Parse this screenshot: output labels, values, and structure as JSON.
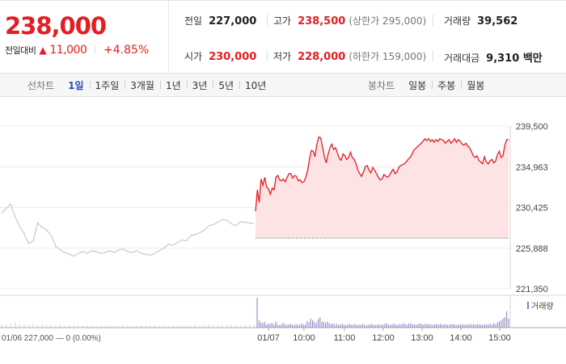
{
  "price": {
    "current": "238,000",
    "change_label": "전일대비",
    "change_value": "11,000",
    "change_rate": "+4.85%"
  },
  "stats": {
    "prev_close_label": "전일",
    "prev_close": "227,000",
    "high_label": "고가",
    "high": "238,500",
    "upper_limit": "(상한가 295,000)",
    "volume_label": "거래량",
    "volume": "39,562",
    "open_label": "시가",
    "open": "230,000",
    "low_label": "저가",
    "low": "228,000",
    "lower_limit": "(하한가 159,000)",
    "amount_label": "거래대금",
    "amount": "9,310 백만"
  },
  "line_tabs": {
    "head": "선차트",
    "items": [
      "1일",
      "1주일",
      "3개월",
      "1년",
      "3년",
      "5년",
      "10년"
    ],
    "active": "1일"
  },
  "candle_tabs": {
    "head": "봉차트",
    "items": [
      "일봉",
      "주봉",
      "월봉"
    ]
  },
  "colors": {
    "up": "#e41e23",
    "up_fill": "#fde3e4",
    "prev_line": "#c9c9c9",
    "volume": "#8a7bbf",
    "active_tab": "#2a4fb7"
  },
  "chart_data": {
    "type": "line",
    "y_ticks": [
      "239,500",
      "234,963",
      "230,425",
      "225,888",
      "221,350"
    ],
    "ylim": [
      221350,
      239500
    ],
    "prev_close": 227000,
    "x_labels": [
      "01/07",
      "10:00",
      "11:00",
      "12:00",
      "13:00",
      "14:00",
      "15:00"
    ],
    "prev_day_caption": "01/06  227,000 — 0 (0.00%)",
    "volume_legend": "거래량",
    "prev_day_prices": [
      229800,
      230300,
      230800,
      229400,
      228300,
      227500,
      226400,
      226700,
      228700,
      228200,
      227900,
      227300,
      226100,
      225700,
      225400,
      225200,
      225000,
      225300,
      225500,
      225300,
      225600,
      225500,
      225300,
      225400,
      225600,
      225400,
      225700,
      225800,
      225500,
      225400,
      225600,
      225300,
      225200,
      225100,
      225300,
      225600,
      225900,
      226300,
      226200,
      226500,
      226800,
      226700,
      227300,
      227400,
      227600,
      227900,
      228400,
      228500,
      228800,
      229100,
      229000,
      228600,
      228400,
      228800,
      228800,
      228700,
      228600
    ],
    "today_prices": [
      230000,
      232400,
      231000,
      233600,
      232900,
      233800,
      232700,
      232500,
      231900,
      232600,
      232400,
      233800,
      234000,
      233500,
      233400,
      233600,
      233300,
      233800,
      234200,
      234200,
      233700,
      234000,
      233900,
      233400,
      233500,
      233200,
      233300,
      233800,
      234500,
      235800,
      236800,
      236700,
      236100,
      237500,
      238300,
      238200,
      237200,
      236100,
      235400,
      236400,
      237100,
      237500,
      236900,
      237100,
      236500,
      235900,
      235700,
      236400,
      236200,
      235800,
      236000,
      236600,
      236000,
      235800,
      235300,
      234600,
      234200,
      233900,
      234400,
      235000,
      235100,
      234600,
      234300,
      234900,
      234600,
      234200,
      233800,
      233500,
      233600,
      234100,
      233900,
      233800,
      234000,
      234400,
      234700,
      234200,
      234400,
      234900,
      235100,
      235200,
      235300,
      235500,
      235800,
      236000,
      236300,
      236800,
      237000,
      237200,
      237400,
      237600,
      237800,
      238100,
      237900,
      238100,
      237800,
      238000,
      237700,
      238000,
      237800,
      238100,
      238000,
      237900,
      237600,
      237800,
      238000,
      237600,
      237800,
      238100,
      237700,
      238000,
      237800,
      237500,
      237400,
      237600,
      237300,
      237100,
      236700,
      236200,
      236000,
      236200,
      235700,
      235500,
      235300,
      236100,
      235500,
      235300,
      235600,
      235800,
      235400,
      235600,
      236300,
      236700,
      236000,
      236200,
      237400,
      238000,
      238000
    ],
    "today_volume": [
      1.0,
      0.25,
      0.18,
      0.15,
      0.2,
      0.1,
      0.14,
      0.12,
      0.16,
      0.1,
      0.2,
      0.12,
      0.08,
      0.1,
      0.15,
      0.12,
      0.09,
      0.1,
      0.13,
      0.1,
      0.08,
      0.12,
      0.1,
      0.09,
      0.14,
      0.11,
      0.1,
      0.22,
      0.18,
      0.3,
      0.25,
      0.2,
      0.15,
      0.28,
      0.35,
      0.2,
      0.18,
      0.16,
      0.2,
      0.15,
      0.12,
      0.14,
      0.1,
      0.12,
      0.09,
      0.11,
      0.13,
      0.1,
      0.08,
      0.1,
      0.12,
      0.09,
      0.1,
      0.11,
      0.08,
      0.1,
      0.09,
      0.12,
      0.1,
      0.08,
      0.09,
      0.1,
      0.12,
      0.09,
      0.08,
      0.1,
      0.11,
      0.09,
      0.1,
      0.12,
      0.15,
      0.1,
      0.09,
      0.11,
      0.13,
      0.1,
      0.09,
      0.12,
      0.1,
      0.14,
      0.12,
      0.1,
      0.13,
      0.15,
      0.12,
      0.11,
      0.1,
      0.12,
      0.14,
      0.12,
      0.1,
      0.13,
      0.11,
      0.12,
      0.1,
      0.09,
      0.11,
      0.12,
      0.1,
      0.13,
      0.11,
      0.1,
      0.12,
      0.09,
      0.1,
      0.11,
      0.12,
      0.1,
      0.09,
      0.11,
      0.1,
      0.12,
      0.1,
      0.09,
      0.11,
      0.12,
      0.1,
      0.11,
      0.1,
      0.12,
      0.11,
      0.1,
      0.09,
      0.12,
      0.1,
      0.11,
      0.12,
      0.1,
      0.15,
      0.12,
      0.18,
      0.2,
      0.25,
      0.3,
      0.35,
      0.55,
      0.3
    ],
    "prev_volume": [
      0.12,
      0.1,
      0.14,
      0.2,
      0.12,
      0.1,
      0.09,
      0.12,
      0.08,
      0.1,
      0.09,
      0.07,
      0.08,
      0.1,
      0.07,
      0.06,
      0.08,
      0.07,
      0.06,
      0.08,
      0.07,
      0.06,
      0.07,
      0.08,
      0.06,
      0.07,
      0.06,
      0.08,
      0.07,
      0.06,
      0.07,
      0.06,
      0.08,
      0.07,
      0.06,
      0.07,
      0.08,
      0.07,
      0.06,
      0.08,
      0.07,
      0.06,
      0.08,
      0.09,
      0.07,
      0.08,
      0.1,
      0.08,
      0.09,
      0.07,
      0.08,
      0.1,
      0.08,
      0.07,
      0.09,
      0.08,
      0.1
    ]
  }
}
